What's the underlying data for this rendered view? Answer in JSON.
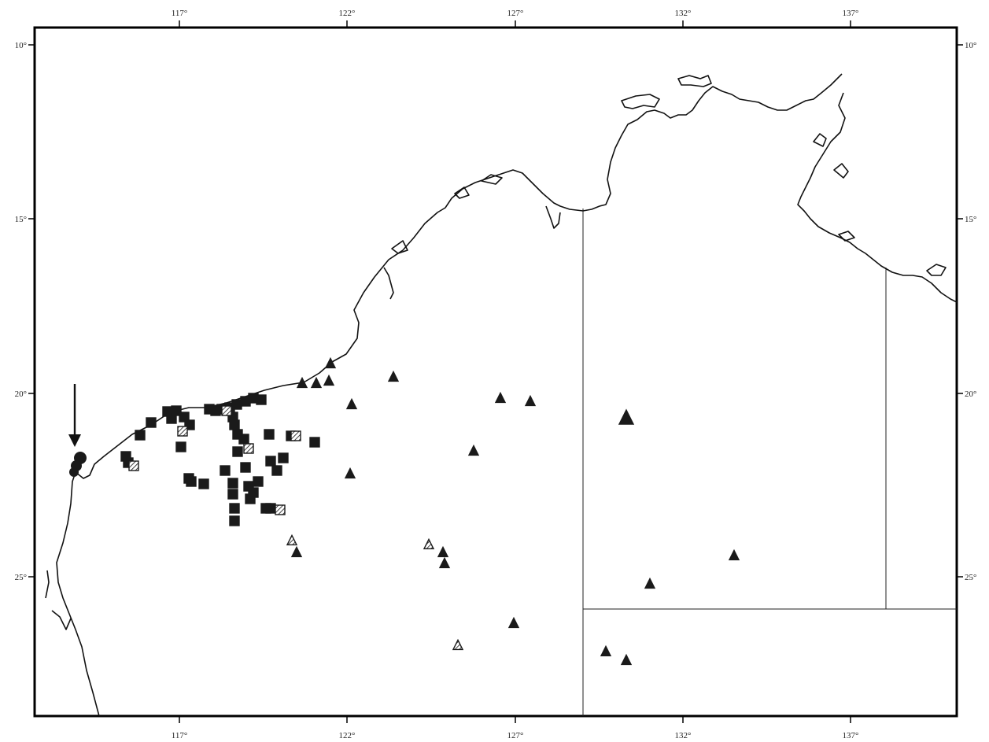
{
  "map": {
    "x_tick_labels": [
      "117°",
      "122°",
      "127°",
      "132°",
      "137°"
    ],
    "y_tick_labels": [
      "10°",
      "15°",
      "20°",
      "25°"
    ],
    "colors": {
      "frame": "#000000",
      "coast": "#111111",
      "marker": "#1a1a1a",
      "hatched": "#ffffff",
      "background": "#ffffff"
    },
    "marker_types": [
      "filled-square",
      "hatched-square",
      "filled-triangle",
      "hatched-triangle",
      "filled-circle",
      "arrow"
    ]
  }
}
